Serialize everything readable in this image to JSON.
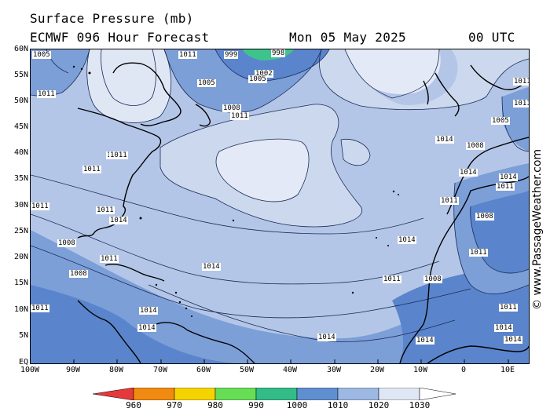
{
  "header": {
    "title": "Surface Pressure (mb)",
    "model": "ECMWF 096 Hour Forecast",
    "date": "Mon 05 May 2025",
    "time": "00 UTC"
  },
  "map": {
    "lat_labels": [
      "60N",
      "55N",
      "50N",
      "45N",
      "40N",
      "35N",
      "30N",
      "25N",
      "20N",
      "15N",
      "10N",
      "5N",
      "EQ"
    ],
    "lon_labels": [
      "100W",
      "90W",
      "80W",
      "70W",
      "60W",
      "50W",
      "40W",
      "30W",
      "20W",
      "10W",
      "0",
      "10E"
    ],
    "isobar_labels": [
      "1005",
      "999",
      "998",
      "1002",
      "1011",
      "1011",
      "1005",
      "1005",
      "1008",
      "1011",
      "1014",
      "1011",
      "1014",
      "1011",
      "1011",
      "1014",
      "1011",
      "1008",
      "1014",
      "1011",
      "1008",
      "1014",
      "1011",
      "1014",
      "1014",
      "1014",
      "1011",
      "1005",
      "1011",
      "1008",
      "1011",
      "1014",
      "1011",
      "1008",
      "1011",
      "1008",
      "1011",
      "1014",
      "1011",
      "1014",
      "1011",
      "1014"
    ],
    "colors": {
      "ocean_1020": "#b4c6e7",
      "high_1030": "#e3e9f6",
      "mid_1025": "#ccd8ee",
      "low_1010": "#7c9fd8",
      "low_1005": "#5a85cc",
      "deep_990": "#3dc48c"
    }
  },
  "colorbar": {
    "values": [
      "960",
      "970",
      "980",
      "990",
      "1000",
      "1010",
      "1020",
      "1030"
    ],
    "colors": [
      "#e8393a",
      "#f08a10",
      "#f5d300",
      "#66dd55",
      "#33bb88",
      "#5f8fd0",
      "#9db8e3",
      "#dfe7f5",
      "#ffffff"
    ]
  },
  "credit": "© www.PassageWeather.com"
}
